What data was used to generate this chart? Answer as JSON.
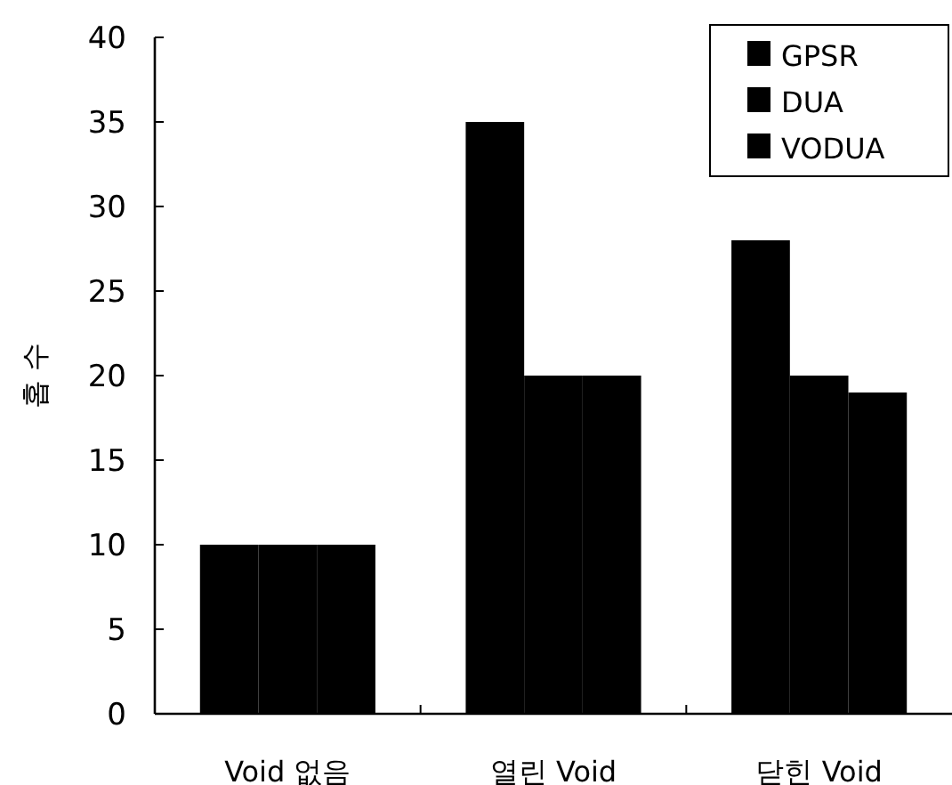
{
  "chart_data": {
    "type": "bar",
    "ylabel": "홉 수",
    "categories": [
      "Void 없음",
      "열린 Void",
      "닫힌 Void"
    ],
    "series": [
      {
        "name": "GPSR",
        "color": "#000000",
        "values": [
          10,
          35,
          28
        ]
      },
      {
        "name": "DUA",
        "color": "#000000",
        "values": [
          10,
          20,
          20
        ]
      },
      {
        "name": "VODUA",
        "color": "#000000",
        "values": [
          10,
          20,
          19
        ]
      }
    ],
    "ylim": [
      0,
      40
    ],
    "yticks": [
      0,
      5,
      10,
      15,
      20,
      25,
      30,
      35,
      40
    ],
    "legend": "top right"
  }
}
